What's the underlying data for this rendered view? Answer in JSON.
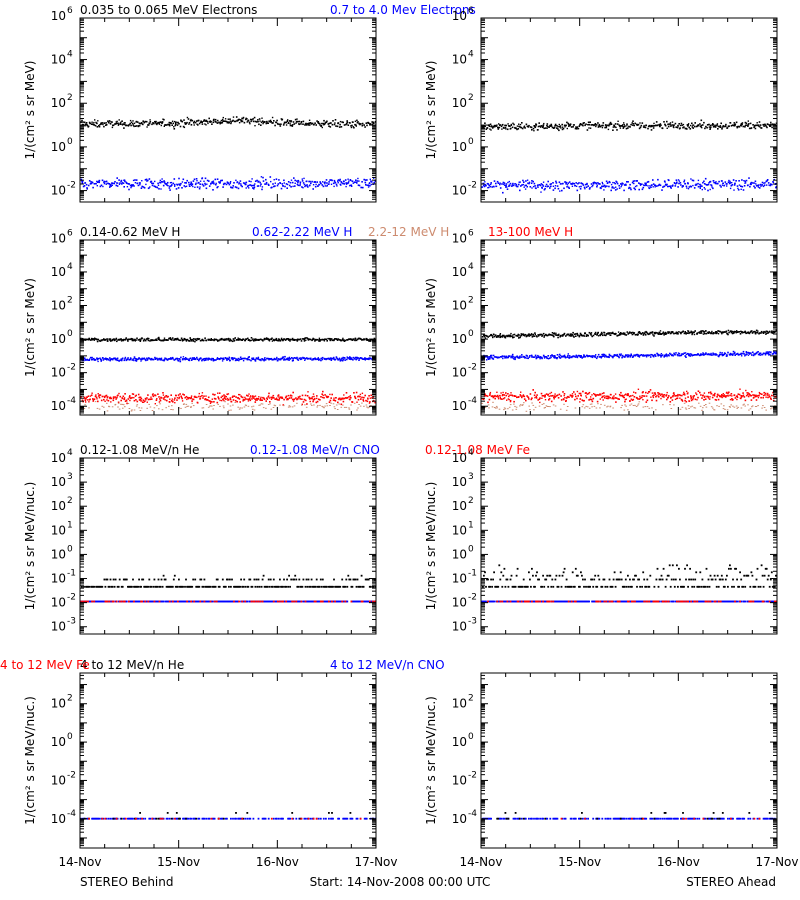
{
  "colors": {
    "black": "#000000",
    "blue": "#0000ff",
    "red": "#ff0000",
    "brown": "#cd8b6f",
    "axis": "#000000"
  },
  "footer": {
    "left_label": "STEREO Behind",
    "center_label": "Start: 14-Nov-2008 00:00 UTC",
    "right_label": "STEREO Ahead"
  },
  "chart_data": [
    {
      "type": "scatter",
      "panel": "electrons-behind",
      "title_parts": [
        {
          "text": "0.035 to 0.065 MeV Electrons",
          "color": "black"
        },
        {
          "text": "0.7 to 4.0 Mev Electrons",
          "color": "blue"
        }
      ],
      "ylabel": "1/(cm² s sr MeV)",
      "yscale": "log",
      "ylim": [
        0.003,
        800000
      ],
      "yticks": [
        {
          "v": 0.01,
          "e": "-2"
        },
        {
          "v": 1,
          "e": "0"
        },
        {
          "v": 100,
          "e": "2"
        },
        {
          "v": 10000,
          "e": "4"
        },
        {
          "v": 1000000,
          "e": "6"
        }
      ],
      "xlabel_ticks": [
        "14-Nov",
        "15-Nov",
        "16-Nov",
        "17-Nov"
      ],
      "xlim": [
        0,
        3
      ],
      "series": [
        {
          "color": "black",
          "style": "dense",
          "points": [
            [
              0.0,
              11
            ],
            [
              0.5,
              11
            ],
            [
              1.0,
              12
            ],
            [
              1.3,
              14
            ],
            [
              1.6,
              16
            ],
            [
              2.0,
              13
            ],
            [
              2.5,
              11
            ],
            [
              3.0,
              11
            ]
          ],
          "spread": 0.08
        },
        {
          "color": "blue",
          "style": "dense",
          "points": [
            [
              0.0,
              0.02
            ],
            [
              1.0,
              0.019
            ],
            [
              2.0,
              0.021
            ],
            [
              3.0,
              0.022
            ]
          ],
          "spread": 0.12
        }
      ]
    },
    {
      "type": "scatter",
      "panel": "electrons-ahead",
      "title_parts": [],
      "ylabel": "1/(cm² s sr MeV)",
      "yscale": "log",
      "ylim": [
        0.003,
        800000
      ],
      "yticks": [
        {
          "v": 0.01,
          "e": "-2"
        },
        {
          "v": 1,
          "e": "0"
        },
        {
          "v": 100,
          "e": "2"
        },
        {
          "v": 10000,
          "e": "4"
        },
        {
          "v": 1000000,
          "e": "6"
        }
      ],
      "xlabel_ticks": [
        "14-Nov",
        "15-Nov",
        "16-Nov",
        "17-Nov"
      ],
      "xlim": [
        0,
        3
      ],
      "series": [
        {
          "color": "black",
          "style": "dense",
          "points": [
            [
              0.0,
              8
            ],
            [
              1.0,
              9
            ],
            [
              2.0,
              9.5
            ],
            [
              3.0,
              9.5
            ]
          ],
          "spread": 0.08
        },
        {
          "color": "blue",
          "style": "dense",
          "points": [
            [
              0.0,
              0.016
            ],
            [
              1.0,
              0.017
            ],
            [
              2.0,
              0.018
            ],
            [
              3.0,
              0.02
            ]
          ],
          "spread": 0.12
        }
      ]
    },
    {
      "type": "scatter",
      "panel": "protons-behind",
      "title_parts": [
        {
          "text": "0.14-0.62 MeV H",
          "color": "black"
        },
        {
          "text": "0.62-2.22 MeV H",
          "color": "blue"
        },
        {
          "text": "2.2-12 MeV H",
          "color": "brown"
        },
        {
          "text": "13-100 MeV H",
          "color": "red"
        }
      ],
      "ylabel": "1/(cm² s sr MeV)",
      "yscale": "log",
      "ylim": [
        3e-05,
        800000
      ],
      "yticks": [
        {
          "v": 0.0001,
          "e": "-4"
        },
        {
          "v": 0.01,
          "e": "-2"
        },
        {
          "v": 1,
          "e": "0"
        },
        {
          "v": 100,
          "e": "2"
        },
        {
          "v": 10000,
          "e": "4"
        },
        {
          "v": 1000000,
          "e": "6"
        }
      ],
      "xlabel_ticks": [
        "14-Nov",
        "15-Nov",
        "16-Nov",
        "17-Nov"
      ],
      "xlim": [
        0,
        3
      ],
      "series": [
        {
          "color": "black",
          "style": "dense",
          "points": [
            [
              0.0,
              0.9
            ],
            [
              3.0,
              0.9
            ]
          ],
          "spread": 0.05
        },
        {
          "color": "blue",
          "style": "dense",
          "points": [
            [
              0.0,
              0.06
            ],
            [
              3.0,
              0.065
            ]
          ],
          "spread": 0.05
        },
        {
          "color": "red",
          "style": "dense",
          "points": [
            [
              0.0,
              0.0003
            ],
            [
              3.0,
              0.0003
            ]
          ],
          "spread": 0.15
        },
        {
          "color": "brown",
          "style": "sparse",
          "points": [
            [
              0.0,
              9e-05
            ],
            [
              3.0,
              9e-05
            ]
          ],
          "spread": 0.12
        }
      ]
    },
    {
      "type": "scatter",
      "panel": "protons-ahead",
      "title_parts": [],
      "ylabel": "1/(cm² s sr MeV)",
      "yscale": "log",
      "ylim": [
        3e-05,
        800000
      ],
      "yticks": [
        {
          "v": 0.0001,
          "e": "-4"
        },
        {
          "v": 0.01,
          "e": "-2"
        },
        {
          "v": 1,
          "e": "0"
        },
        {
          "v": 100,
          "e": "2"
        },
        {
          "v": 10000,
          "e": "4"
        },
        {
          "v": 1000000,
          "e": "6"
        }
      ],
      "xlabel_ticks": [
        "14-Nov",
        "15-Nov",
        "16-Nov",
        "17-Nov"
      ],
      "xlim": [
        0,
        3
      ],
      "series": [
        {
          "color": "black",
          "style": "dense",
          "points": [
            [
              0.0,
              1.4
            ],
            [
              1.0,
              1.8
            ],
            [
              2.0,
              2.3
            ],
            [
              3.0,
              2.6
            ]
          ],
          "spread": 0.06
        },
        {
          "color": "blue",
          "style": "dense",
          "points": [
            [
              0.0,
              0.08
            ],
            [
              1.0,
              0.09
            ],
            [
              2.0,
              0.11
            ],
            [
              3.0,
              0.14
            ]
          ],
          "spread": 0.06
        },
        {
          "color": "red",
          "style": "dense",
          "points": [
            [
              0.0,
              0.00035
            ],
            [
              3.0,
              0.0004
            ]
          ],
          "spread": 0.15
        },
        {
          "color": "brown",
          "style": "sparse",
          "points": [
            [
              0.0,
              9e-05
            ],
            [
              3.0,
              9e-05
            ]
          ],
          "spread": 0.12
        }
      ]
    },
    {
      "type": "scatter",
      "panel": "low-ions-behind",
      "title_parts": [
        {
          "text": "0.12-1.08 MeV/n He",
          "color": "black"
        },
        {
          "text": "0.12-1.08 MeV/n CNO",
          "color": "blue"
        },
        {
          "text": "0.12-1.08 MeV Fe",
          "color": "red"
        }
      ],
      "ylabel": "1/(cm² s sr MeV/nuc.)",
      "yscale": "log",
      "ylim": [
        0.0005,
        10000
      ],
      "yticks": [
        {
          "v": 0.001,
          "e": "-3"
        },
        {
          "v": 0.01,
          "e": "-2"
        },
        {
          "v": 0.1,
          "e": "-1"
        },
        {
          "v": 1,
          "e": "0"
        },
        {
          "v": 10,
          "e": "1"
        },
        {
          "v": 100,
          "e": "2"
        },
        {
          "v": 1000,
          "e": "3"
        },
        {
          "v": 10000,
          "e": "4"
        }
      ],
      "xlabel_ticks": [
        "14-Nov",
        "15-Nov",
        "16-Nov",
        "17-Nov"
      ],
      "xlim": [
        0,
        3
      ],
      "series": [
        {
          "color": "black",
          "style": "quantized",
          "levels": [
            0.045,
            0.09,
            0.13
          ],
          "weights": [
            0.75,
            0.22,
            0.03
          ]
        },
        {
          "color": "blue",
          "style": "quantized",
          "levels": [
            0.011
          ],
          "weights": [
            1
          ]
        },
        {
          "color": "red",
          "style": "quantized",
          "levels": [
            0.011
          ],
          "weights": [
            1
          ],
          "fraction": 0.25
        }
      ]
    },
    {
      "type": "scatter",
      "panel": "low-ions-ahead",
      "title_parts": [],
      "ylabel": "1/(cm² s sr MeV/nuc.)",
      "yscale": "log",
      "ylim": [
        0.0005,
        10000
      ],
      "yticks": [
        {
          "v": 0.001,
          "e": "-3"
        },
        {
          "v": 0.01,
          "e": "-2"
        },
        {
          "v": 0.1,
          "e": "-1"
        },
        {
          "v": 1,
          "e": "0"
        },
        {
          "v": 10,
          "e": "1"
        },
        {
          "v": 100,
          "e": "2"
        },
        {
          "v": 1000,
          "e": "3"
        },
        {
          "v": 10000,
          "e": "4"
        }
      ],
      "xlabel_ticks": [
        "14-Nov",
        "15-Nov",
        "16-Nov",
        "17-Nov"
      ],
      "xlim": [
        0,
        3
      ],
      "series": [
        {
          "color": "black",
          "style": "quantized",
          "levels": [
            0.045,
            0.09,
            0.13,
            0.18,
            0.25,
            0.35
          ],
          "weights": [
            0.5,
            0.25,
            0.12,
            0.07,
            0.04,
            0.02
          ]
        },
        {
          "color": "blue",
          "style": "quantized",
          "levels": [
            0.011
          ],
          "weights": [
            1
          ]
        },
        {
          "color": "red",
          "style": "quantized",
          "levels": [
            0.011
          ],
          "weights": [
            1
          ],
          "fraction": 0.3
        }
      ]
    },
    {
      "type": "scatter",
      "panel": "high-ions-behind",
      "title_parts": [
        {
          "text": "4 to 12 MeV/n He",
          "color": "black"
        },
        {
          "text": "4 to 12 MeV/n CNO",
          "color": "blue"
        },
        {
          "text": "4 to 12 MeV Fe",
          "color": "red"
        }
      ],
      "ylabel": "1/(cm² s sr MeV/nuc.)",
      "yscale": "log",
      "ylim": [
        3e-06,
        4000
      ],
      "yticks": [
        {
          "v": 0.0001,
          "e": "-4"
        },
        {
          "v": 0.01,
          "e": "-2"
        },
        {
          "v": 1,
          "e": "0"
        },
        {
          "v": 100,
          "e": "2"
        }
      ],
      "xlabel_ticks": [
        "14-Nov",
        "15-Nov",
        "16-Nov",
        "17-Nov"
      ],
      "xlim": [
        0,
        3
      ],
      "series": [
        {
          "color": "blue",
          "style": "quantized",
          "levels": [
            0.0001
          ],
          "weights": [
            1
          ],
          "fraction": 0.55
        },
        {
          "color": "black",
          "style": "quantized",
          "levels": [
            0.0001,
            0.0002
          ],
          "weights": [
            0.7,
            0.3
          ],
          "fraction": 0.08
        },
        {
          "color": "red",
          "style": "quantized",
          "levels": [
            0.0001
          ],
          "weights": [
            1
          ],
          "fraction": 0.05
        }
      ]
    },
    {
      "type": "scatter",
      "panel": "high-ions-ahead",
      "title_parts": [],
      "ylabel": "1/(cm² s sr MeV/nuc.)",
      "yscale": "log",
      "ylim": [
        3e-06,
        4000
      ],
      "yticks": [
        {
          "v": 0.0001,
          "e": "-4"
        },
        {
          "v": 0.01,
          "e": "-2"
        },
        {
          "v": 1,
          "e": "0"
        },
        {
          "v": 100,
          "e": "2"
        }
      ],
      "xlabel_ticks": [
        "14-Nov",
        "15-Nov",
        "16-Nov",
        "17-Nov"
      ],
      "xlim": [
        0,
        3
      ],
      "series": [
        {
          "color": "blue",
          "style": "quantized",
          "levels": [
            0.0001
          ],
          "weights": [
            1
          ],
          "fraction": 0.55
        },
        {
          "color": "black",
          "style": "quantized",
          "levels": [
            0.0001,
            0.0002
          ],
          "weights": [
            0.7,
            0.3
          ],
          "fraction": 0.06
        },
        {
          "color": "red",
          "style": "quantized",
          "levels": [
            0.0001
          ],
          "weights": [
            1
          ],
          "fraction": 0.03
        }
      ]
    }
  ]
}
